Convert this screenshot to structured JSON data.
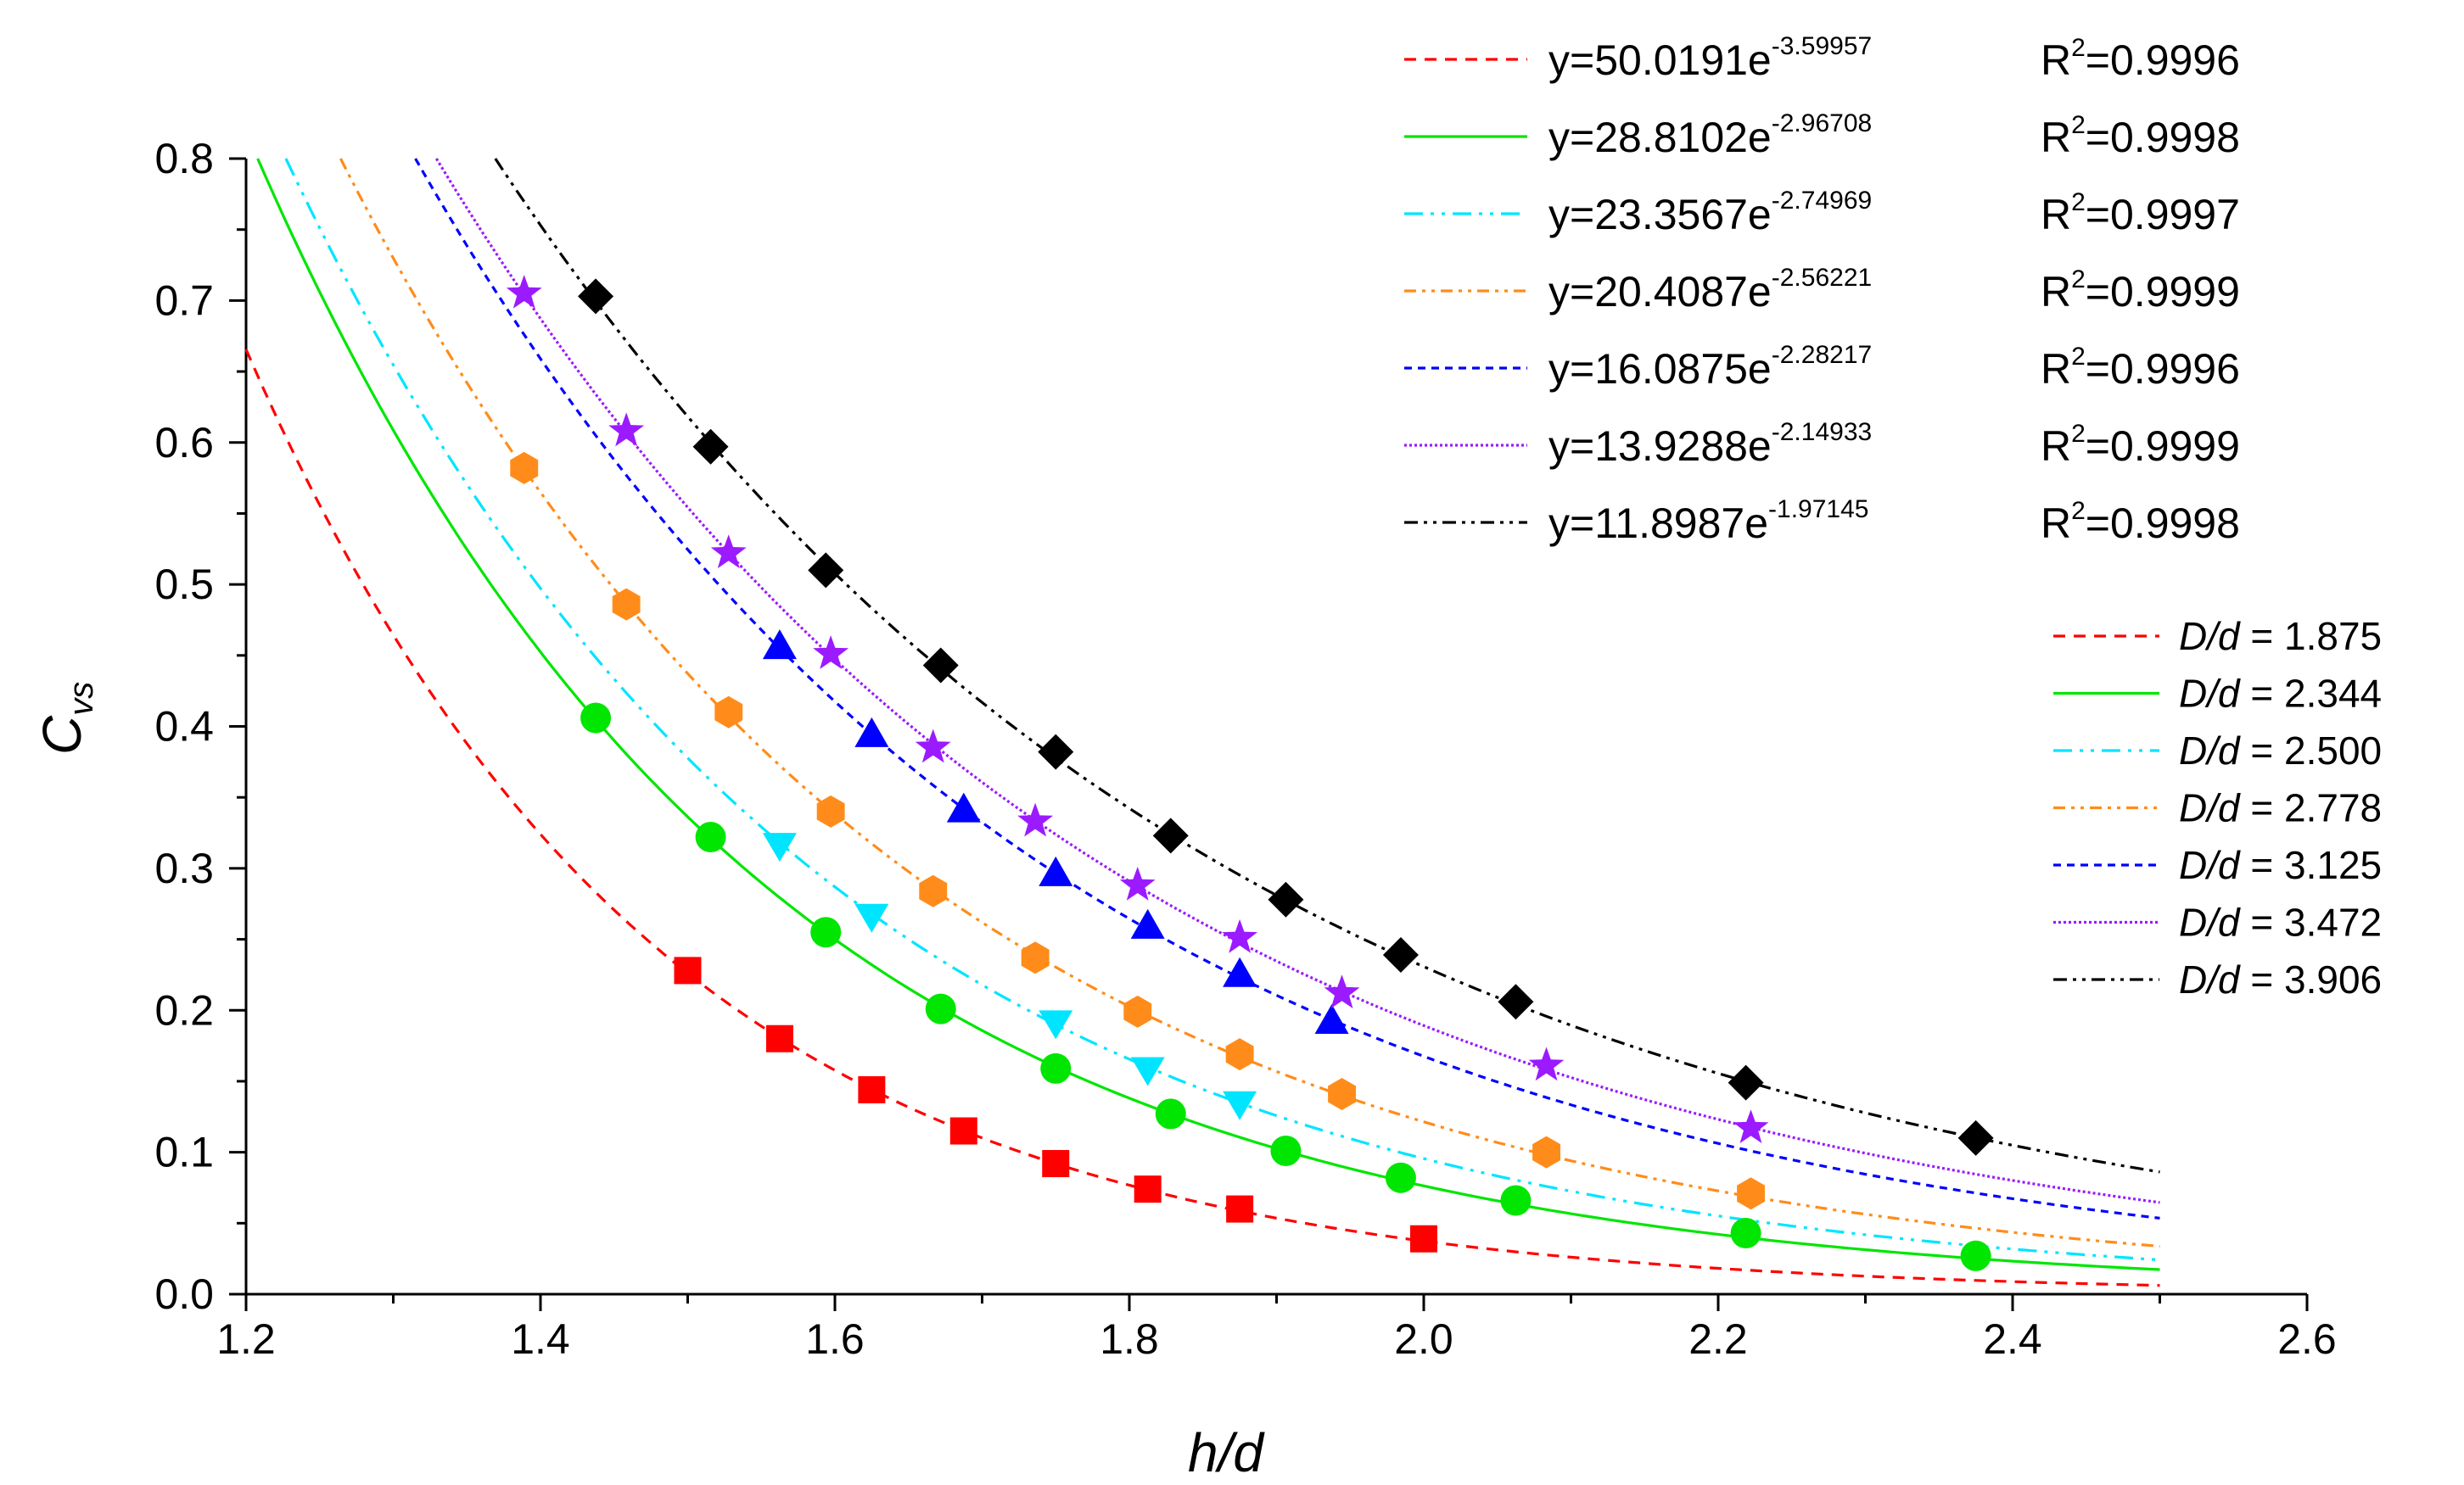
{
  "chart_data": {
    "type": "scatter",
    "title": "",
    "xlabel": "h/d",
    "ylabel_main": "C",
    "ylabel_sub": "vs",
    "xlim": [
      1.2,
      2.6
    ],
    "ylim": [
      0.0,
      0.8
    ],
    "xticks": [
      "1.2",
      "1.4",
      "1.6",
      "1.8",
      "2.0",
      "2.2",
      "2.4",
      "2.6"
    ],
    "yticks": [
      "0.0",
      "0.1",
      "0.2",
      "0.3",
      "0.4",
      "0.5",
      "0.6",
      "0.7",
      "0.8"
    ],
    "series": [
      {
        "name": "1.875",
        "label_prefix": "D/d",
        "label": "D/d = 1.875",
        "color": "#ff0000",
        "marker": "square",
        "fit_a": 50.0191,
        "fit_b": -3.59957,
        "fit_text": "y=50.0191e",
        "fit_exp_text": "-3.59957",
        "r2_value": "=0.9996",
        "x": [
          1.5,
          1.5625,
          1.625,
          1.6875,
          1.75,
          1.8125,
          1.875,
          2.0
        ],
        "y": [
          0.228,
          0.18,
          0.144,
          0.115,
          0.092,
          0.074,
          0.06,
          0.039
        ]
      },
      {
        "name": "2.344",
        "label_prefix": "D/d",
        "label": "D/d = 2.344",
        "color": "#00e600",
        "marker": "circle",
        "fit_a": 28.8102,
        "fit_b": -2.96708,
        "fit_text": "y=28.8102e",
        "fit_exp_text": "-2.96708",
        "r2_value": "=0.9998",
        "x": [
          1.4375,
          1.5156,
          1.5938,
          1.6719,
          1.75,
          1.8281,
          1.9063,
          1.9844,
          2.0625,
          2.2188,
          2.375
        ],
        "y": [
          0.406,
          0.322,
          0.255,
          0.201,
          0.159,
          0.127,
          0.101,
          0.082,
          0.066,
          0.043,
          0.027
        ]
      },
      {
        "name": "2.500",
        "label_prefix": "D/d",
        "label": "D/d = 2.500",
        "color": "#00e5ff",
        "marker": "triangle-down",
        "fit_a": 23.3567,
        "fit_b": -2.74969,
        "fit_text": "y=23.3567e",
        "fit_exp_text": "-2.74969",
        "r2_value": "=0.9997",
        "x": [
          1.5625,
          1.625,
          1.75,
          1.8125,
          1.875
        ],
        "y": [
          0.316,
          0.266,
          0.191,
          0.158,
          0.134
        ]
      },
      {
        "name": "2.778",
        "label_prefix": "D/d",
        "label": "D/d = 2.778",
        "color": "#ff8c1a",
        "marker": "hexagon",
        "fit_a": 20.4087,
        "fit_b": -2.56221,
        "fit_text": "y=20.4087e",
        "fit_exp_text": "-2.56221",
        "r2_value": "=0.9999",
        "x": [
          1.3889,
          1.4583,
          1.5278,
          1.5972,
          1.6667,
          1.7361,
          1.8056,
          1.875,
          1.9444,
          2.0833,
          2.2222
        ],
        "y": [
          0.582,
          0.486,
          0.41,
          0.34,
          0.284,
          0.237,
          0.199,
          0.169,
          0.141,
          0.1,
          0.071
        ]
      },
      {
        "name": "3.125",
        "label_prefix": "D/d",
        "label": "D/d = 3.125",
        "color": "#0000ff",
        "marker": "triangle-up",
        "fit_a": 16.0875,
        "fit_b": -2.28217,
        "fit_text": "y=16.0875e",
        "fit_exp_text": "-2.28217",
        "r2_value": "=0.9996",
        "x": [
          1.5625,
          1.625,
          1.6875,
          1.75,
          1.8125,
          1.875,
          1.9375
        ],
        "y": [
          0.457,
          0.395,
          0.342,
          0.297,
          0.26,
          0.226,
          0.193
        ]
      },
      {
        "name": "3.472",
        "label_prefix": "D/d",
        "label": "D/d = 3.472",
        "color": "#9b1aff",
        "marker": "star",
        "fit_a": 13.9288,
        "fit_b": -2.14933,
        "fit_text": "y=13.9288e",
        "fit_exp_text": "-2.14933",
        "r2_value": "=0.9999",
        "x": [
          1.3889,
          1.4583,
          1.5278,
          1.5972,
          1.6667,
          1.7361,
          1.8056,
          1.875,
          1.9444,
          2.0833,
          2.2222
        ],
        "y": [
          0.705,
          0.608,
          0.522,
          0.451,
          0.385,
          0.333,
          0.288,
          0.251,
          0.212,
          0.161,
          0.117
        ]
      },
      {
        "name": "3.906",
        "label_prefix": "D/d",
        "label": "D/d = 3.906",
        "color": "#000000",
        "marker": "diamond",
        "fit_a": 11.8987,
        "fit_b": -1.97145,
        "fit_text": "y=11.8987e",
        "fit_exp_text": "-1.97145",
        "r2_value": "=0.9998",
        "x": [
          1.4375,
          1.5156,
          1.5938,
          1.6719,
          1.75,
          1.8281,
          1.9063,
          1.9844,
          2.0625,
          2.2188,
          2.375
        ],
        "y": [
          0.703,
          0.597,
          0.51,
          0.443,
          0.382,
          0.323,
          0.278,
          0.239,
          0.206,
          0.149,
          0.11
        ]
      }
    ],
    "r2_label": "R",
    "r2_sup": "2"
  }
}
